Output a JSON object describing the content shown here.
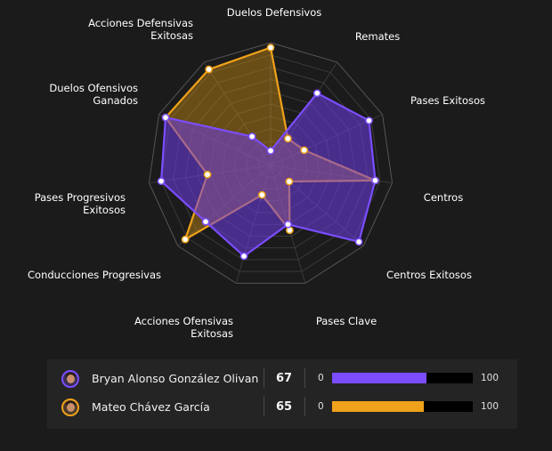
{
  "chart_data": {
    "type": "radar",
    "scale_max": 100,
    "axes": [
      "Duelos Defensivos",
      "Remates",
      "Pases Exitosos",
      "Centros",
      "Centros Exitosos",
      "Pases Clave",
      "Acciones Ofensivas Exitosas",
      "Conducciones Progresivas",
      "Pases Progresivos Exitosos",
      "Duelos Ofensivos Ganados",
      "Acciones Defensivas Exitosas"
    ],
    "series": [
      {
        "name": "Bryan Alonso González Olivan",
        "color": "#7b4dff",
        "values": [
          12,
          70,
          88,
          86,
          95,
          50,
          77,
          70,
          90,
          94,
          28
        ]
      },
      {
        "name": "Mateo Chávez García",
        "color": "#f0a21a",
        "values": [
          96,
          26,
          30,
          86,
          20,
          55,
          25,
          92,
          52,
          94,
          93
        ]
      }
    ]
  },
  "legend": [
    {
      "name": "Bryan Alonso González Olivan",
      "score": "67",
      "min": "0",
      "max": "100",
      "value": 67,
      "color": "#7b4dff",
      "avatar_icon": "player-avatar-icon"
    },
    {
      "name": "Mateo Chávez García",
      "score": "65",
      "min": "0",
      "max": "100",
      "value": 65,
      "color": "#f0a21a",
      "avatar_icon": "player-avatar-icon"
    }
  ]
}
